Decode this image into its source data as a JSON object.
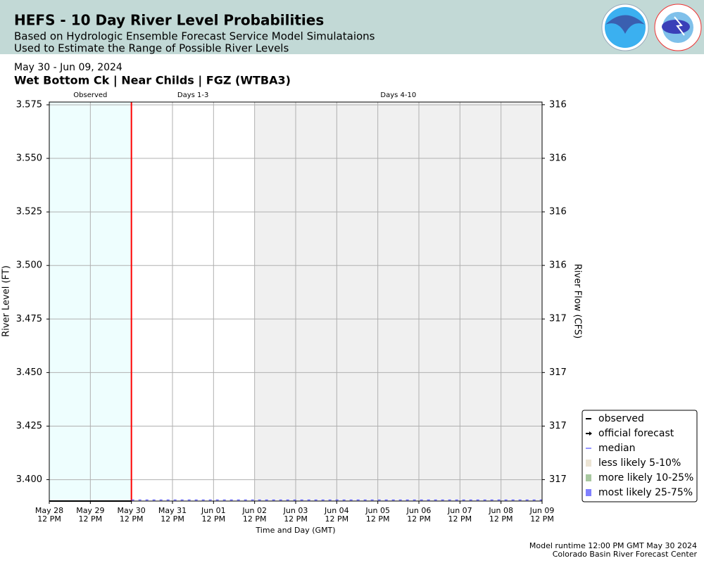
{
  "header": {
    "title": "HEFS - 10 Day River Level Probabilities",
    "subtitle": "Based on Hydrologic Ensemble Forecast Service Model Simulataions",
    "subtitle2": "Used to Estimate the Range of Possible River Levels"
  },
  "chart_data": {
    "type": "line",
    "date_range": "May 30 - Jun 09, 2024",
    "title": "Wet Bottom Ck | Near Childs | FGZ (WTBA3)",
    "xlabel": "Time and Day (GMT)",
    "ylabel": "River Level (FT)",
    "y2label": "River Flow (CFS)",
    "regions": [
      {
        "label": "Observed",
        "start": "2024-05-28T12:00",
        "end": "2024-05-30T12:00",
        "color": "#eefefe"
      },
      {
        "label": "Days 1-3",
        "start": "2024-05-30T12:00",
        "end": "2024-06-02T12:00",
        "color": "#ffffff"
      },
      {
        "label": "Days 4-10",
        "start": "2024-06-02T12:00",
        "end": "2024-06-09T12:00",
        "color": "#f0f0f0"
      }
    ],
    "forecast_start": "2024-05-30T12:00",
    "forecast_start_color": "#ff0000",
    "xlim": [
      "2024-05-28T12:00",
      "2024-06-09T12:00"
    ],
    "xticks": [
      {
        "value": "2024-05-28T12:00",
        "label": [
          "May 28",
          "12 PM"
        ]
      },
      {
        "value": "2024-05-29T12:00",
        "label": [
          "May 29",
          "12 PM"
        ]
      },
      {
        "value": "2024-05-30T12:00",
        "label": [
          "May 30",
          "12 PM"
        ]
      },
      {
        "value": "2024-05-31T12:00",
        "label": [
          "May 31",
          "12 PM"
        ]
      },
      {
        "value": "2024-06-01T12:00",
        "label": [
          "Jun 01",
          "12 PM"
        ]
      },
      {
        "value": "2024-06-02T12:00",
        "label": [
          "Jun 02",
          "12 PM"
        ]
      },
      {
        "value": "2024-06-03T12:00",
        "label": [
          "Jun 03",
          "12 PM"
        ]
      },
      {
        "value": "2024-06-04T12:00",
        "label": [
          "Jun 04",
          "12 PM"
        ]
      },
      {
        "value": "2024-06-05T12:00",
        "label": [
          "Jun 05",
          "12 PM"
        ]
      },
      {
        "value": "2024-06-06T12:00",
        "label": [
          "Jun 06",
          "12 PM"
        ]
      },
      {
        "value": "2024-06-07T12:00",
        "label": [
          "Jun 07",
          "12 PM"
        ]
      },
      {
        "value": "2024-06-08T12:00",
        "label": [
          "Jun 08",
          "12 PM"
        ]
      },
      {
        "value": "2024-06-09T12:00",
        "label": [
          "Jun 09",
          "12 PM"
        ]
      }
    ],
    "ylim": [
      3.39,
      3.5763
    ],
    "yticks": [
      {
        "value": 3.4,
        "label": "3.400"
      },
      3.425,
      {
        "value": 3.45,
        "label": "3.450"
      },
      3.475,
      {
        "value": 3.5,
        "label": "3.500"
      },
      3.525,
      {
        "value": 3.55,
        "label": "3.550"
      },
      3.575
    ],
    "y2lim": [
      316.84,
      316.095
    ],
    "y2ticks": [
      {
        "value": 316.8,
        "label": "317"
      },
      {
        "value": 316.7,
        "label": "317"
      },
      {
        "value": 316.6,
        "label": "317"
      },
      {
        "value": 316.5,
        "label": "317"
      },
      {
        "value": 316.4,
        "label": "316"
      },
      {
        "value": 316.3,
        "label": "316"
      },
      {
        "value": 316.2,
        "label": "316"
      },
      {
        "value": 316.1,
        "label": "316"
      }
    ],
    "grid": true,
    "legend": "lower right",
    "series": [
      {
        "name": "observed",
        "color": "#000000",
        "kind": "line",
        "x": [
          "2024-05-28T12:00",
          "2024-05-30T12:00"
        ],
        "values": [
          3.39,
          3.39
        ]
      },
      {
        "name": "official forecast",
        "color": "#000000",
        "kind": "arrow",
        "x": [],
        "values": []
      },
      {
        "name": "median",
        "color": "#5050ff",
        "kind": "dashed",
        "x": [
          "2024-05-30T12:00",
          "2024-06-09T12:00"
        ],
        "values": [
          3.3905,
          3.3905
        ]
      },
      {
        "name": "less likely 5-10%",
        "color": "#ece4d4",
        "kind": "band",
        "x": [],
        "values": []
      },
      {
        "name": "more likely 10-25%",
        "color": "#a8c8a0",
        "kind": "band",
        "x": [],
        "values": []
      },
      {
        "name": "most likely 25-75%",
        "color": "#8080ff",
        "kind": "band",
        "x": [],
        "values": []
      }
    ]
  },
  "footer": {
    "line1": "Model runtime 12:00 PM GMT May 30 2024",
    "line2": "Colorado Basin River Forecast Center"
  }
}
